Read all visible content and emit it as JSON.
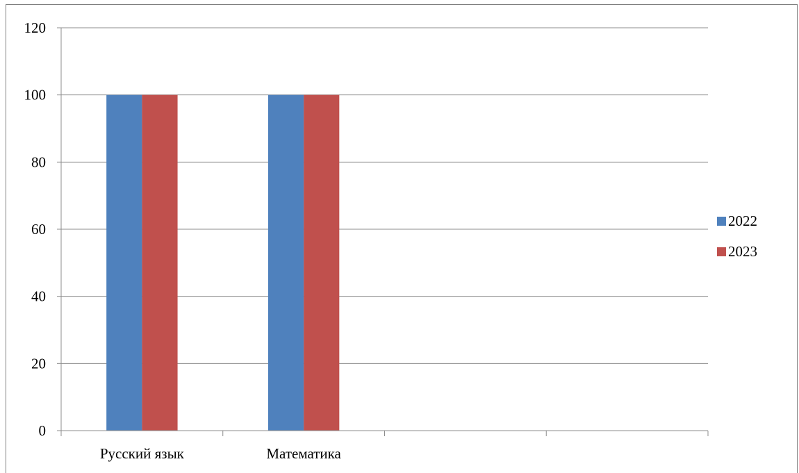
{
  "chart_data": {
    "type": "bar",
    "categories": [
      "Русский язык",
      "Математика",
      "",
      ""
    ],
    "series": [
      {
        "name": "2022",
        "values": [
          100,
          100,
          null,
          null
        ],
        "color": "#4f81bd"
      },
      {
        "name": "2023",
        "values": [
          100,
          100,
          null,
          null
        ],
        "color": "#c0504d"
      }
    ],
    "ylim": [
      0,
      120
    ],
    "yticks": [
      0,
      20,
      40,
      60,
      80,
      100,
      120
    ],
    "grid": true,
    "legend": "right"
  }
}
